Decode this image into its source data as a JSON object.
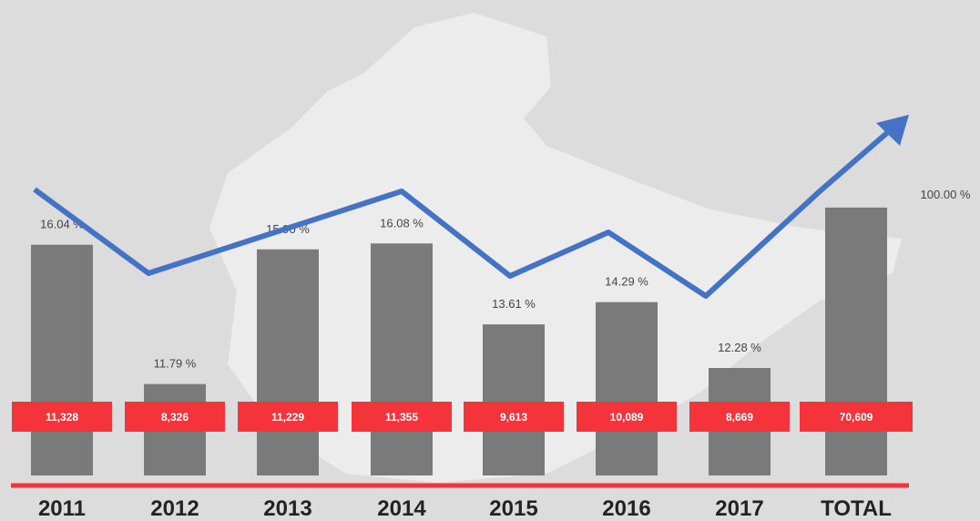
{
  "chart_data": {
    "type": "bar",
    "categories": [
      "2011",
      "2012",
      "2013",
      "2014",
      "2015",
      "2016",
      "2017"
    ],
    "values": [
      16.04,
      11.79,
      15.9,
      16.08,
      13.61,
      14.29,
      12.28
    ],
    "value_labels": [
      "16.04 %",
      "11.79 %",
      "15.90 %",
      "16.08 %",
      "13.61 %",
      "14.29 %",
      "12.28 %"
    ],
    "counts": [
      11328,
      8326,
      11229,
      11355,
      9613,
      10089,
      8669
    ],
    "count_labels": [
      "11,328",
      "8,326",
      "11,229",
      "11,355",
      "9,613",
      "10,089",
      "8,669"
    ],
    "ylim": [
      9,
      17.2
    ],
    "color": "#7a7a7a",
    "label_color": "#f4333a",
    "total": {
      "category": "TOTAL",
      "value": 100.0,
      "value_label": "100.00 %",
      "count": 70609,
      "count_label": "70,609",
      "ylim": [
        0,
        102
      ]
    }
  }
}
